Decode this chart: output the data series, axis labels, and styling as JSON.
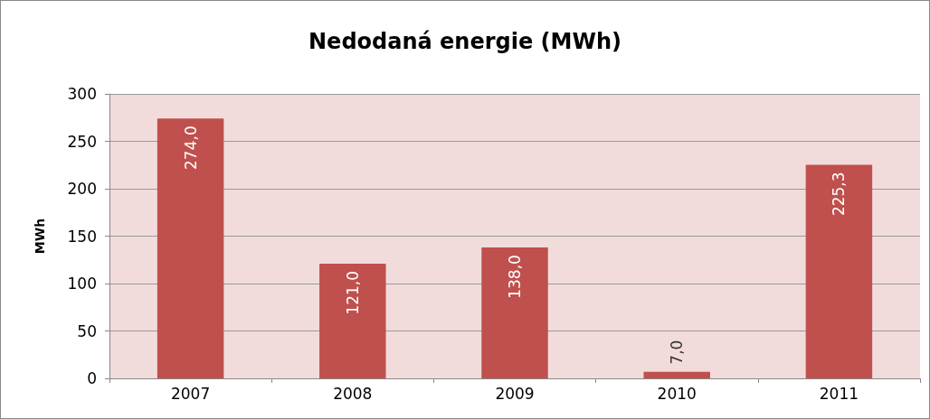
{
  "chart_data": {
    "type": "bar",
    "title": "Nedodaná energie (MWh)",
    "ylabel": "MWh",
    "categories": [
      "2007",
      "2008",
      "2009",
      "2010",
      "2011"
    ],
    "values": [
      274.0,
      121.0,
      138.0,
      7.0,
      225.3
    ],
    "value_labels": [
      "274,0",
      "121,0",
      "138,0",
      "7,0",
      "225,3"
    ],
    "color": "#c0504d",
    "ylim": [
      0,
      300
    ],
    "yticks": [
      0,
      50,
      100,
      150,
      200,
      250,
      300
    ],
    "grid": "y"
  }
}
